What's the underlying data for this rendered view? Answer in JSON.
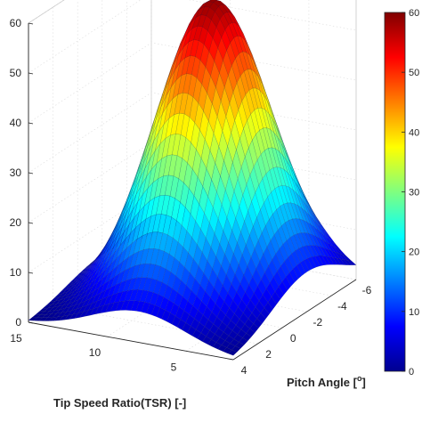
{
  "chart_data": {
    "type": "surface",
    "colormap": "jet",
    "xlabel": "Pitch Angle [",
    "xlabel_sup": "o",
    "xlabel_end": "]",
    "ylabel": "Tip Speed Ratio(TSR) [-]",
    "zlabel": "",
    "title": "",
    "x_ticks": [
      "-6",
      "-4",
      "-2",
      "0",
      "2",
      "4"
    ],
    "y_ticks": [
      "15",
      "10",
      "5"
    ],
    "z_ticks": [
      "0",
      "10",
      "20",
      "30",
      "40",
      "50",
      "60"
    ],
    "colorbar_ticks": [
      "0",
      "10",
      "20",
      "30",
      "40",
      "50",
      "60"
    ],
    "xlim": [
      -6,
      4
    ],
    "ylim": [
      2,
      15
    ],
    "zlim": [
      0,
      60
    ],
    "clim": [
      0,
      60
    ],
    "grid": true,
    "peak": {
      "pitch_angle": -2,
      "tsr": 8,
      "value": 59
    },
    "surface_formula": "z = 59*exp(-(pitch+2)^2/16 - (tsr-8)^2/18) (approximate shape)"
  }
}
